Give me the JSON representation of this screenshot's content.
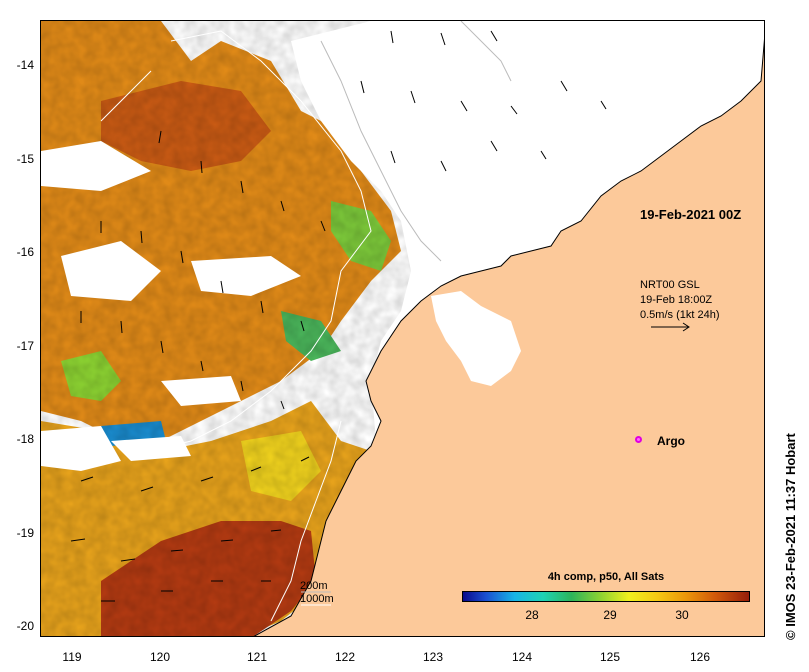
{
  "map": {
    "date_label": "19-Feb-2021 00Z",
    "current_info": {
      "line1": "NRT00 GSL",
      "line2": "19-Feb 18:00Z",
      "line3": "0.5m/s (1kt 24h)"
    },
    "argo_label": "Argo",
    "contour_legend": {
      "line1": "200m",
      "line2": "1000m"
    },
    "x_ticks": [
      "119",
      "120",
      "121",
      "122",
      "123",
      "124",
      "125",
      "126"
    ],
    "y_ticks": [
      "-14",
      "-15",
      "-16",
      "-17",
      "-18",
      "-19",
      "-20"
    ],
    "land_color": "#fcc99a",
    "no_data_color": "#ffffff"
  },
  "colorbar": {
    "title": "4h comp, p50, All Sats",
    "ticks": [
      "28",
      "29",
      "30"
    ]
  },
  "credit": "IMOS 23-Feb-2021 11:37 Hobart",
  "credit_symbol": "©"
}
